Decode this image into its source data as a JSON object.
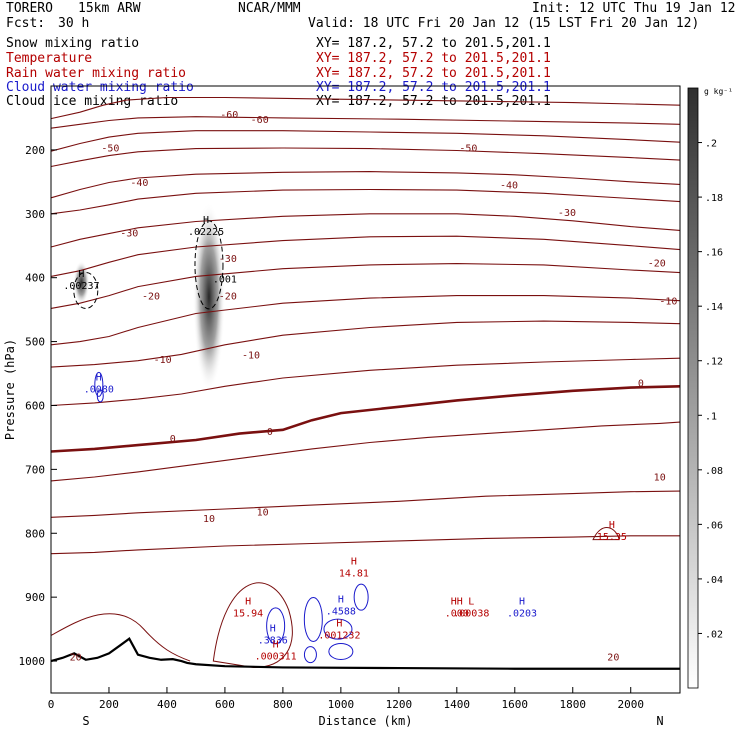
{
  "header": {
    "model": "TORERO",
    "run": "15km ARW",
    "org": "NCAR/MMM",
    "init": "Init: 12 UTC Thu 19 Jan 12",
    "fcst_label": "Fcst:",
    "fcst_value": "30 h",
    "valid": "Valid: 18 UTC Fri 20 Jan 12 (15 LST Fri 20 Jan 12)"
  },
  "fields": [
    {
      "name": "Snow mixing ratio",
      "xy": "XY= 187.2, 57.2 to 201.5,201.1",
      "color": "#000000"
    },
    {
      "name": "Temperature",
      "xy": "XY= 187.2, 57.2 to 201.5,201.1",
      "color": "#b40000"
    },
    {
      "name": "Rain water mixing ratio",
      "xy": "XY= 187.2, 57.2 to 201.5,201.1",
      "color": "#b40000"
    },
    {
      "name": "Cloud water mixing ratio",
      "xy": "XY= 187.2, 57.2 to 201.5,201.1",
      "color": "#1a1acc"
    },
    {
      "name": "Cloud ice mixing ratio",
      "xy": "XY= 187.2, 57.2 to 201.5,201.1",
      "color": "#000000"
    }
  ],
  "chart_data": {
    "type": "contour-cross-section",
    "xlabel": "Distance (km)",
    "ylabel": "Pressure (hPa)",
    "xlim": [
      0,
      2170
    ],
    "ylim": [
      1050,
      100
    ],
    "xticks": [
      0,
      200,
      400,
      600,
      800,
      1000,
      1200,
      1400,
      1600,
      1800,
      2000
    ],
    "yticks": [
      200,
      300,
      400,
      500,
      600,
      700,
      800,
      900,
      1000
    ],
    "end_labels": {
      "left": "S",
      "right": "N"
    },
    "colorbar": {
      "unit": "g kg⁻¹",
      "ticks": [
        0.02,
        0.04,
        0.06,
        0.08,
        0.1,
        0.12,
        0.14,
        0.16,
        0.18,
        0.2
      ],
      "tick_labels": [
        ".02",
        ".04",
        ".06",
        ".08",
        ".1",
        ".12",
        ".14",
        ".16",
        ".18",
        ".2"
      ],
      "max": 0.22
    },
    "temperature_contours": [
      {
        "value": -60,
        "points": [
          [
            0,
            151
          ],
          [
            100,
            141
          ],
          [
            180,
            130
          ],
          [
            260,
            122
          ],
          [
            400,
            118
          ],
          [
            600,
            118
          ],
          [
            900,
            120
          ],
          [
            1200,
            122
          ],
          [
            1500,
            124
          ],
          [
            1800,
            126
          ],
          [
            2170,
            130
          ]
        ]
      },
      {
        "value": -55,
        "points": [
          [
            0,
            166
          ],
          [
            100,
            160
          ],
          [
            200,
            154
          ],
          [
            300,
            150
          ],
          [
            500,
            148
          ],
          [
            800,
            150
          ],
          [
            1200,
            152
          ],
          [
            1600,
            155
          ],
          [
            2000,
            158
          ],
          [
            2170,
            160
          ]
        ]
      },
      {
        "value": -50,
        "points": [
          [
            0,
            202
          ],
          [
            100,
            190
          ],
          [
            200,
            180
          ],
          [
            300,
            174
          ],
          [
            500,
            170
          ],
          [
            800,
            170
          ],
          [
            1100,
            172
          ],
          [
            1400,
            174
          ],
          [
            1700,
            178
          ],
          [
            2000,
            184
          ],
          [
            2170,
            188
          ]
        ]
      },
      {
        "value": -45,
        "points": [
          [
            0,
            226
          ],
          [
            100,
            217
          ],
          [
            200,
            209
          ],
          [
            300,
            203
          ],
          [
            500,
            198
          ],
          [
            800,
            197
          ],
          [
            1100,
            198
          ],
          [
            1400,
            201
          ],
          [
            1700,
            206
          ],
          [
            2000,
            212
          ],
          [
            2170,
            216
          ]
        ]
      },
      {
        "value": -40,
        "points": [
          [
            0,
            275
          ],
          [
            100,
            262
          ],
          [
            200,
            251
          ],
          [
            300,
            244
          ],
          [
            500,
            238
          ],
          [
            800,
            235
          ],
          [
            1100,
            234
          ],
          [
            1400,
            236
          ],
          [
            1600,
            239
          ],
          [
            1800,
            244
          ],
          [
            2000,
            250
          ],
          [
            2170,
            254
          ]
        ]
      },
      {
        "value": -35,
        "points": [
          [
            0,
            300
          ],
          [
            100,
            294
          ],
          [
            200,
            286
          ],
          [
            300,
            277
          ],
          [
            500,
            268
          ],
          [
            800,
            263
          ],
          [
            1100,
            262
          ],
          [
            1400,
            263
          ],
          [
            1700,
            268
          ],
          [
            2000,
            276
          ],
          [
            2170,
            281
          ]
        ]
      },
      {
        "value": -30,
        "points": [
          [
            0,
            352
          ],
          [
            100,
            340
          ],
          [
            200,
            331
          ],
          [
            300,
            322
          ],
          [
            500,
            312
          ],
          [
            800,
            304
          ],
          [
            1100,
            300
          ],
          [
            1400,
            300
          ],
          [
            1600,
            304
          ],
          [
            1800,
            311
          ],
          [
            2000,
            320
          ],
          [
            2170,
            326
          ]
        ]
      },
      {
        "value": -25,
        "points": [
          [
            0,
            398
          ],
          [
            100,
            389
          ],
          [
            200,
            376
          ],
          [
            300,
            364
          ],
          [
            500,
            352
          ],
          [
            800,
            342
          ],
          [
            1100,
            336
          ],
          [
            1400,
            335
          ],
          [
            1700,
            340
          ],
          [
            2000,
            350
          ],
          [
            2170,
            356
          ]
        ]
      },
      {
        "value": -20,
        "points": [
          [
            0,
            448
          ],
          [
            100,
            440
          ],
          [
            200,
            428
          ],
          [
            300,
            414
          ],
          [
            500,
            398
          ],
          [
            800,
            386
          ],
          [
            1100,
            380
          ],
          [
            1400,
            378
          ],
          [
            1700,
            380
          ],
          [
            2000,
            388
          ],
          [
            2170,
            392
          ]
        ]
      },
      {
        "value": -15,
        "points": [
          [
            0,
            505
          ],
          [
            100,
            500
          ],
          [
            200,
            492
          ],
          [
            300,
            478
          ],
          [
            500,
            456
          ],
          [
            800,
            440
          ],
          [
            1100,
            432
          ],
          [
            1400,
            428
          ],
          [
            1700,
            428
          ],
          [
            2000,
            432
          ],
          [
            2170,
            436
          ]
        ]
      },
      {
        "value": -10,
        "points": [
          [
            0,
            540
          ],
          [
            150,
            536
          ],
          [
            300,
            530
          ],
          [
            450,
            520
          ],
          [
            600,
            505
          ],
          [
            800,
            490
          ],
          [
            1100,
            478
          ],
          [
            1400,
            470
          ],
          [
            1700,
            468
          ],
          [
            2000,
            470
          ],
          [
            2170,
            472
          ]
        ]
      },
      {
        "value": -5,
        "points": [
          [
            0,
            600
          ],
          [
            150,
            596
          ],
          [
            300,
            590
          ],
          [
            450,
            582
          ],
          [
            600,
            570
          ],
          [
            800,
            557
          ],
          [
            1100,
            545
          ],
          [
            1400,
            537
          ],
          [
            1700,
            532
          ],
          [
            2000,
            528
          ],
          [
            2170,
            526
          ]
        ]
      },
      {
        "value": 0,
        "points": [
          [
            0,
            672
          ],
          [
            150,
            668
          ],
          [
            300,
            662
          ],
          [
            500,
            654
          ],
          [
            650,
            644
          ],
          [
            800,
            638
          ],
          [
            900,
            623
          ],
          [
            1000,
            612
          ],
          [
            1200,
            602
          ],
          [
            1400,
            592
          ],
          [
            1600,
            584
          ],
          [
            1800,
            577
          ],
          [
            2000,
            572
          ],
          [
            2170,
            570
          ]
        ]
      },
      {
        "value": 5,
        "points": [
          [
            0,
            718
          ],
          [
            150,
            712
          ],
          [
            300,
            704
          ],
          [
            500,
            692
          ],
          [
            700,
            680
          ],
          [
            900,
            668
          ],
          [
            1100,
            658
          ],
          [
            1300,
            650
          ],
          [
            1500,
            644
          ],
          [
            1700,
            638
          ],
          [
            1900,
            632
          ],
          [
            2100,
            628
          ],
          [
            2170,
            626
          ]
        ]
      },
      {
        "value": 10,
        "points": [
          [
            0,
            775
          ],
          [
            150,
            772
          ],
          [
            300,
            768
          ],
          [
            600,
            762
          ],
          [
            900,
            756
          ],
          [
            1200,
            750
          ],
          [
            1500,
            742
          ],
          [
            1800,
            738
          ],
          [
            2000,
            735
          ],
          [
            2170,
            734
          ]
        ]
      },
      {
        "value": 15,
        "points": [
          [
            0,
            832
          ],
          [
            150,
            830
          ],
          [
            300,
            826
          ],
          [
            600,
            820
          ],
          [
            900,
            816
          ],
          [
            1200,
            812
          ],
          [
            1500,
            808
          ],
          [
            1800,
            806
          ],
          [
            2000,
            804
          ],
          [
            2170,
            804
          ]
        ]
      }
    ],
    "temperature_labels": [
      {
        "text": "-60",
        "x": 615,
        "p": 144
      },
      {
        "text": "-60",
        "x": 720,
        "p": 152
      },
      {
        "text": "-50",
        "x": 205,
        "p": 196
      },
      {
        "text": "-50",
        "x": 1440,
        "p": 196
      },
      {
        "text": "-40",
        "x": 305,
        "p": 250
      },
      {
        "text": "-40",
        "x": 1580,
        "p": 254
      },
      {
        "text": "-30",
        "x": 270,
        "p": 329
      },
      {
        "text": "-30",
        "x": 1780,
        "p": 297
      },
      {
        "text": "-30",
        "x": 610,
        "p": 369
      },
      {
        "text": "-20",
        "x": 345,
        "p": 428
      },
      {
        "text": "-20",
        "x": 610,
        "p": 428
      },
      {
        "text": "-20",
        "x": 2090,
        "p": 376
      },
      {
        "text": "-10",
        "x": 385,
        "p": 527
      },
      {
        "text": "-10",
        "x": 690,
        "p": 520
      },
      {
        "text": "-10",
        "x": 2130,
        "p": 436
      },
      {
        "text": "0",
        "x": 420,
        "p": 651
      },
      {
        "text": "0",
        "x": 755,
        "p": 640
      },
      {
        "text": "0",
        "x": 2035,
        "p": 564
      },
      {
        "text": "10",
        "x": 545,
        "p": 776
      },
      {
        "text": "10",
        "x": 730,
        "p": 766
      },
      {
        "text": "10",
        "x": 2100,
        "p": 711
      },
      {
        "text": "20",
        "x": 85,
        "p": 993
      },
      {
        "text": "20",
        "x": 1940,
        "p": 993
      }
    ],
    "highs_lows": [
      {
        "mark": "H",
        "value": ".02225",
        "x": 535,
        "p": 321,
        "color": "#000000"
      },
      {
        "mark": "H",
        "value": ".00237",
        "x": 105,
        "p": 405,
        "color": "#000000"
      },
      {
        "mark": "",
        "value": ".001",
        "x": 600,
        "p": 395,
        "color": "#000000"
      },
      {
        "mark": "H",
        "value": ".0080",
        "x": 165,
        "p": 567,
        "color": "#1a1acc"
      },
      {
        "mark": "H",
        "value": "15.94",
        "x": 680,
        "p": 918,
        "color": "#b40000"
      },
      {
        "mark": "H",
        "value": ".3836",
        "x": 765,
        "p": 960,
        "color": "#1a1acc"
      },
      {
        "mark": "H",
        "value": ".000311",
        "x": 775,
        "p": 985,
        "color": "#b40000"
      },
      {
        "mark": "H",
        "value": ".4588",
        "x": 1000,
        "p": 915,
        "color": "#1a1acc"
      },
      {
        "mark": "H",
        "value": ".001232",
        "x": 995,
        "p": 952,
        "color": "#b40000"
      },
      {
        "mark": "H",
        "value": "14.81",
        "x": 1045,
        "p": 855,
        "color": "#b40000"
      },
      {
        "mark": "HH",
        "value": ".000",
        "x": 1400,
        "p": 918,
        "color": "#b40000"
      },
      {
        "mark": "L",
        "value": ".00038",
        "x": 1450,
        "p": 918,
        "color": "#b40000"
      },
      {
        "mark": "H",
        "value": ".0203",
        "x": 1625,
        "p": 918,
        "color": "#1a1acc"
      },
      {
        "mark": "H",
        "value": "15.35",
        "x": 1935,
        "p": 798,
        "color": "#b40000"
      }
    ],
    "snow_maxima": [
      {
        "x": 545,
        "p": 430,
        "max": 0.22
      },
      {
        "x": 105,
        "p": 408,
        "max": 0.05
      }
    ]
  }
}
